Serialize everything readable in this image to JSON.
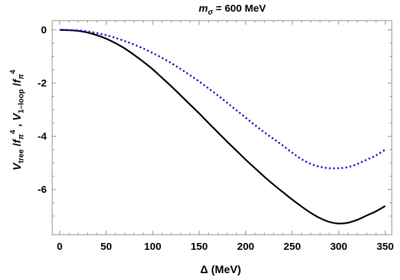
{
  "chart_data": {
    "type": "line",
    "title": "m_σ = 600 MeV",
    "title_parts": {
      "sym": "m",
      "sub": "σ",
      "rest": " = 600 MeV"
    },
    "xlabel": "Δ (MeV)",
    "ylabel_parts": {
      "v1": "V",
      "s1": "tree",
      "m1": " /",
      "f1": "f",
      "fs1": "π",
      "p1": "4",
      "sep": " ,  ",
      "v2": "V",
      "s2": "1–loop",
      "m2": " /",
      "f2": "f",
      "fs2": "π",
      "p2": "4"
    },
    "xlim": [
      -8,
      357
    ],
    "ylim": [
      -7.7,
      0.35
    ],
    "xticks": [
      0,
      50,
      100,
      150,
      200,
      250,
      300,
      350
    ],
    "yticks": [
      0,
      -2,
      -4,
      -6
    ],
    "xtick_labels": [
      "0",
      "50",
      "100",
      "150",
      "200",
      "250",
      "300",
      "350"
    ],
    "ytick_labels": [
      "0",
      "-2",
      "-4",
      "-6"
    ],
    "grid": false,
    "series": [
      {
        "style": "solid",
        "color": "#000000",
        "x": [
          0,
          10,
          20,
          30,
          40,
          50,
          60,
          70,
          80,
          90,
          100,
          110,
          120,
          130,
          140,
          150,
          160,
          170,
          180,
          190,
          200,
          210,
          220,
          230,
          240,
          250,
          260,
          270,
          280,
          290,
          300,
          310,
          320,
          330,
          340,
          350
        ],
        "y": [
          0,
          -0.01,
          -0.04,
          -0.1,
          -0.2,
          -0.33,
          -0.5,
          -0.7,
          -0.94,
          -1.2,
          -1.48,
          -1.8,
          -2.12,
          -2.46,
          -2.8,
          -3.14,
          -3.5,
          -3.85,
          -4.2,
          -4.54,
          -4.88,
          -5.2,
          -5.52,
          -5.82,
          -6.1,
          -6.38,
          -6.64,
          -6.88,
          -7.08,
          -7.22,
          -7.28,
          -7.25,
          -7.14,
          -6.98,
          -6.82,
          -6.62
        ]
      },
      {
        "style": "dotted",
        "color": "#1010d0",
        "x": [
          0,
          10,
          20,
          30,
          40,
          50,
          60,
          70,
          80,
          90,
          100,
          110,
          120,
          130,
          140,
          150,
          160,
          170,
          180,
          190,
          200,
          210,
          220,
          230,
          240,
          250,
          260,
          270,
          280,
          290,
          300,
          310,
          320,
          330,
          340,
          350
        ],
        "y": [
          0,
          -0.01,
          -0.02,
          -0.06,
          -0.12,
          -0.2,
          -0.3,
          -0.42,
          -0.55,
          -0.7,
          -0.87,
          -1.05,
          -1.25,
          -1.47,
          -1.7,
          -1.94,
          -2.2,
          -2.46,
          -2.74,
          -3.02,
          -3.3,
          -3.58,
          -3.85,
          -4.1,
          -4.35,
          -4.62,
          -4.86,
          -5.04,
          -5.15,
          -5.2,
          -5.2,
          -5.16,
          -5.04,
          -4.88,
          -4.72,
          -4.5
        ]
      }
    ]
  }
}
